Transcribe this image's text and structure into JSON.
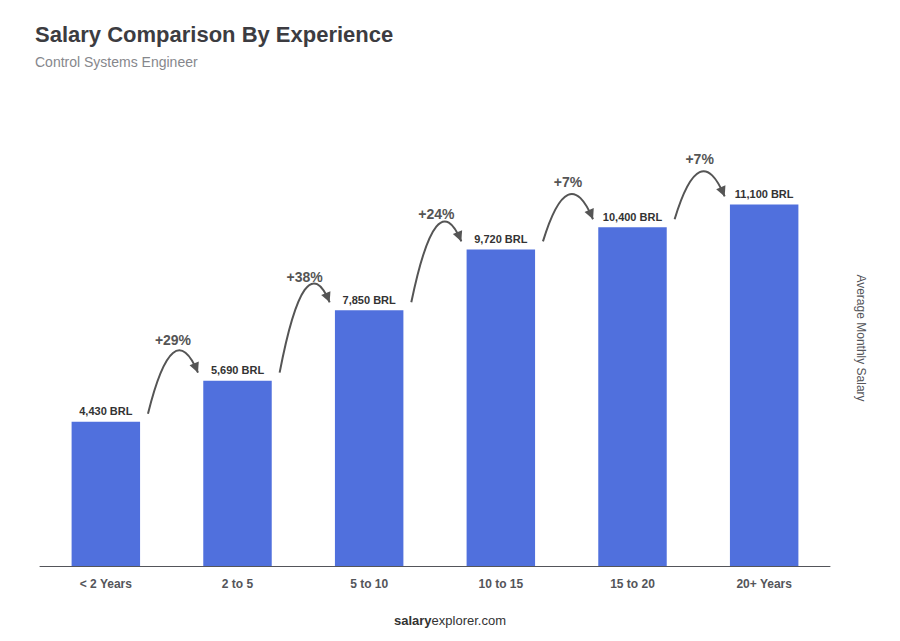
{
  "chart_data": {
    "type": "bar",
    "title": "Salary Comparison By Experience",
    "subtitle": "Control Systems Engineer",
    "categories": [
      "< 2 Years",
      "2 to 5",
      "5 to 10",
      "10 to 15",
      "15 to 20",
      "20+ Years"
    ],
    "values": [
      4430,
      5690,
      7850,
      9720,
      10400,
      11100
    ],
    "value_labels": [
      "4,430 BRL",
      "5,690 BRL",
      "7,850 BRL",
      "9,720 BRL",
      "10,400 BRL",
      "11,100 BRL"
    ],
    "data_labels": true,
    "ylabel": "Average Monthly Salary",
    "ylim": [
      0,
      14000
    ],
    "tick_labels": "x",
    "grid": false,
    "annotations": [
      {
        "text": "+29%",
        "from": "< 2 Years",
        "to": "2 to 5"
      },
      {
        "text": "+38%",
        "from": "2 to 5",
        "to": "5 to 10"
      },
      {
        "text": "+24%",
        "from": "5 to 10",
        "to": "10 to 15"
      },
      {
        "text": "+7%",
        "from": "10 to 15",
        "to": "15 to 20"
      },
      {
        "text": "+7%",
        "from": "15 to 20",
        "to": "20+ Years"
      }
    ],
    "footer": [
      "salary",
      "explorer.com"
    ]
  }
}
